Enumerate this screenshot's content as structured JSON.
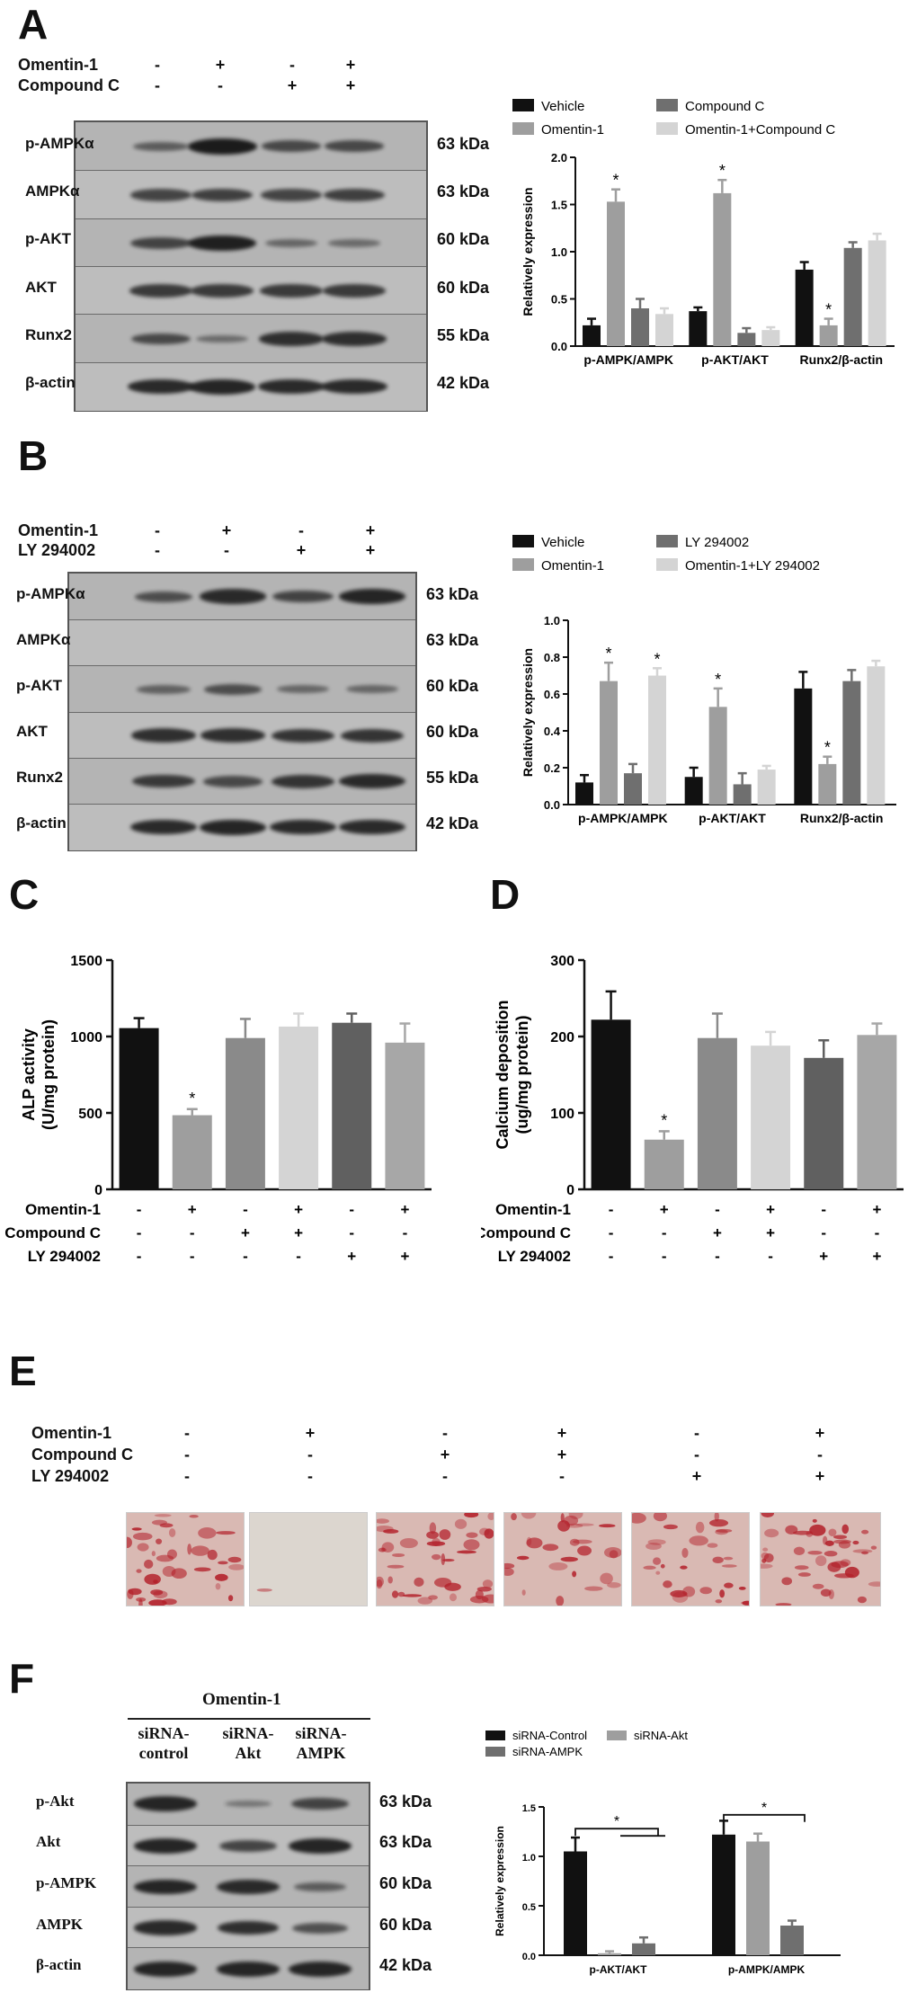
{
  "panels": {
    "A": "A",
    "B": "B",
    "C": "C",
    "D": "D",
    "E": "E",
    "F": "F"
  },
  "colors": {
    "black": "#111111",
    "dark_gray": "#6f6f6f",
    "gray": "#9e9e9e",
    "light_gray": "#d4d4d4",
    "mid_gray": "#8a8a8a",
    "stain": "#b3202a"
  },
  "panelA": {
    "conditions": [
      {
        "label": "Omentin-1",
        "signs": [
          "-",
          "+",
          "-",
          "+"
        ]
      },
      {
        "label": "Compound C",
        "signs": [
          "-",
          "-",
          "+",
          "+"
        ]
      }
    ],
    "blots": [
      {
        "label": "p-AMPKα",
        "kda": "63 kDa",
        "intensity": [
          0.35,
          1.0,
          0.55,
          0.55
        ]
      },
      {
        "label": "AMPKα",
        "kda": "63 kDa",
        "intensity": [
          0.6,
          0.65,
          0.6,
          0.65
        ]
      },
      {
        "label": "p-AKT",
        "kda": "60 kDa",
        "intensity": [
          0.6,
          0.95,
          0.25,
          0.2
        ]
      },
      {
        "label": "AKT",
        "kda": "60 kDa",
        "intensity": [
          0.7,
          0.7,
          0.7,
          0.7
        ]
      },
      {
        "label": "Runx2",
        "kda": "55 kDa",
        "intensity": [
          0.55,
          0.2,
          0.8,
          0.8
        ]
      },
      {
        "label": "β-actin",
        "kda": "42 kDa",
        "intensity": [
          0.85,
          0.9,
          0.85,
          0.85
        ]
      }
    ]
  },
  "panelB": {
    "conditions": [
      {
        "label": "Omentin-1",
        "signs": [
          "-",
          "+",
          "-",
          "+"
        ]
      },
      {
        "label": "LY 294002",
        "signs": [
          "-",
          "-",
          "+",
          "+"
        ]
      }
    ],
    "blots": [
      {
        "label": "p-AMPKα",
        "kda": "63 kDa",
        "intensity": [
          0.5,
          0.85,
          0.6,
          0.9
        ]
      },
      {
        "label": "AMPKα",
        "kda": "63 kDa",
        "intensity": [
          0.0,
          0.0,
          0.0,
          0.0
        ]
      },
      {
        "label": "p-AKT",
        "kda": "60 kDa",
        "intensity": [
          0.3,
          0.5,
          0.25,
          0.25
        ]
      },
      {
        "label": "AKT",
        "kda": "60 kDa",
        "intensity": [
          0.8,
          0.8,
          0.75,
          0.75
        ]
      },
      {
        "label": "Runx2",
        "kda": "55 kDa",
        "intensity": [
          0.7,
          0.55,
          0.75,
          0.85
        ]
      },
      {
        "label": "β-actin",
        "kda": "42 kDa",
        "intensity": [
          0.85,
          0.9,
          0.85,
          0.85
        ]
      }
    ]
  },
  "panelE": {
    "conditions": [
      {
        "label": "Omentin-1",
        "signs": [
          "-",
          "+",
          "-",
          "+",
          "-",
          "+"
        ]
      },
      {
        "label": "Compound C",
        "signs": [
          "-",
          "-",
          "+",
          "+",
          "-",
          "-"
        ]
      },
      {
        "label": "LY 294002",
        "signs": [
          "-",
          "-",
          "-",
          "-",
          "+",
          "+"
        ]
      }
    ],
    "stain_level": [
      0.55,
      0.02,
      0.6,
      0.4,
      0.45,
      0.6
    ]
  },
  "panelF": {
    "header": "Omentin-1",
    "columns": [
      [
        "siRNA-",
        "control"
      ],
      [
        "siRNA-",
        "Akt"
      ],
      [
        "siRNA-",
        "AMPK"
      ]
    ],
    "blots": [
      {
        "label": "p-Akt",
        "kda": "63 kDa",
        "intensity": [
          0.9,
          0.1,
          0.6
        ]
      },
      {
        "label": "Akt",
        "kda": "63 kDa",
        "intensity": [
          0.9,
          0.6,
          0.9
        ]
      },
      {
        "label": "p-AMPK",
        "kda": "60 kDa",
        "intensity": [
          0.9,
          0.85,
          0.35
        ]
      },
      {
        "label": "AMPK",
        "kda": "60 kDa",
        "intensity": [
          0.85,
          0.8,
          0.5
        ]
      },
      {
        "label": "β-actin",
        "kda": "42 kDa",
        "intensity": [
          0.9,
          0.9,
          0.9
        ]
      }
    ]
  },
  "chart_data": [
    {
      "id": "A",
      "type": "bar",
      "ylabel": "Relatively expression",
      "ylim": [
        0,
        2.0
      ],
      "yticks": [
        "0.0",
        "0.5",
        "1.0",
        "1.5",
        "2.0"
      ],
      "categories": [
        "p-AMPK/AMPK",
        "p-AKT/AKT",
        "Runx2/β-actin"
      ],
      "series": [
        {
          "name": "Vehicle",
          "values": [
            0.22,
            0.37,
            0.81
          ],
          "errors": [
            0.07,
            0.04,
            0.08
          ]
        },
        {
          "name": "Omentin-1",
          "values": [
            1.53,
            1.62,
            0.22
          ],
          "errors": [
            0.13,
            0.14,
            0.07
          ]
        },
        {
          "name": "Compound C",
          "values": [
            0.4,
            0.14,
            1.04
          ],
          "errors": [
            0.1,
            0.05,
            0.06
          ]
        },
        {
          "name": "Omentin-1+Compound C",
          "values": [
            0.34,
            0.17,
            1.12
          ],
          "errors": [
            0.06,
            0.03,
            0.07
          ]
        }
      ],
      "legend_order": [
        "Vehicle",
        "Compound C",
        "Omentin-1",
        "Omentin-1+Compound C"
      ],
      "stars": [
        "*",
        "*",
        "*"
      ]
    },
    {
      "id": "B",
      "type": "bar",
      "ylabel": "Relatively expression",
      "ylim": [
        0,
        1.0
      ],
      "yticks": [
        "0.0",
        "0.2",
        "0.4",
        "0.6",
        "0.8",
        "1.0"
      ],
      "categories": [
        "p-AMPK/AMPK",
        "p-AKT/AKT",
        "Runx2/β-actin"
      ],
      "series": [
        {
          "name": "Vehicle",
          "values": [
            0.12,
            0.15,
            0.63
          ],
          "errors": [
            0.04,
            0.05,
            0.09
          ]
        },
        {
          "name": "Omentin-1",
          "values": [
            0.67,
            0.53,
            0.22
          ],
          "errors": [
            0.1,
            0.1,
            0.04
          ]
        },
        {
          "name": "LY 294002",
          "values": [
            0.17,
            0.11,
            0.67
          ],
          "errors": [
            0.05,
            0.06,
            0.06
          ]
        },
        {
          "name": "Omentin-1+LY 294002",
          "values": [
            0.7,
            0.19,
            0.75
          ],
          "errors": [
            0.04,
            0.02,
            0.03
          ]
        }
      ],
      "legend_order": [
        "Vehicle",
        "LY 294002",
        "Omentin-1",
        "Omentin-1+LY 294002"
      ],
      "stars": [
        "*",
        "*",
        "*",
        "*"
      ]
    },
    {
      "id": "C",
      "type": "bar",
      "ylabel": "ALP activity",
      "ylabel2": "(U/mg protein)",
      "ylim": [
        0,
        1500
      ],
      "yticks": [
        "0",
        "500",
        "1000",
        "1500"
      ],
      "values": [
        1055,
        485,
        990,
        1065,
        1090,
        960
      ],
      "errors": [
        65,
        40,
        125,
        85,
        60,
        125
      ],
      "stars": [
        "*"
      ],
      "conditions": [
        {
          "label": "Omentin-1",
          "signs": [
            "-",
            "+",
            "-",
            "+",
            "-",
            "+"
          ]
        },
        {
          "label": "Compound C",
          "signs": [
            "-",
            "-",
            "+",
            "+",
            "-",
            "-"
          ]
        },
        {
          "label": "LY 294002",
          "signs": [
            "-",
            "-",
            "-",
            "-",
            "+",
            "+"
          ]
        }
      ]
    },
    {
      "id": "D",
      "type": "bar",
      "ylabel": "Calcium deposition",
      "ylabel2": "(ug/mg protein)",
      "ylim": [
        0,
        300
      ],
      "yticks": [
        "0",
        "100",
        "200",
        "300"
      ],
      "values": [
        222,
        65,
        198,
        188,
        172,
        202
      ],
      "errors": [
        37,
        11,
        32,
        18,
        23,
        15
      ],
      "stars": [
        "*"
      ],
      "conditions": [
        {
          "label": "Omentin-1",
          "signs": [
            "-",
            "+",
            "-",
            "+",
            "-",
            "+"
          ]
        },
        {
          "label": "Compound C",
          "signs": [
            "-",
            "-",
            "+",
            "+",
            "-",
            "-"
          ]
        },
        {
          "label": "LY 294002",
          "signs": [
            "-",
            "-",
            "-",
            "-",
            "+",
            "+"
          ]
        }
      ]
    },
    {
      "id": "F",
      "type": "bar",
      "ylabel": "Relatively expression",
      "ylim": [
        0,
        1.5
      ],
      "yticks": [
        "0.0",
        "0.5",
        "1.0",
        "1.5"
      ],
      "categories": [
        "p-AKT/AKT",
        "p-AMPK/AMPK"
      ],
      "series": [
        {
          "name": "siRNA-Control",
          "values": [
            1.05,
            1.22
          ],
          "errors": [
            0.14,
            0.14
          ]
        },
        {
          "name": "siRNA-Akt",
          "values": [
            0.02,
            1.15
          ],
          "errors": [
            0.02,
            0.08
          ]
        },
        {
          "name": "siRNA-AMPK",
          "values": [
            0.12,
            0.3
          ],
          "errors": [
            0.06,
            0.05
          ]
        }
      ],
      "legend_order": [
        "siRNA-Control",
        "siRNA-Akt",
        "siRNA-AMPK"
      ],
      "stars": [
        "*",
        "*"
      ]
    }
  ]
}
